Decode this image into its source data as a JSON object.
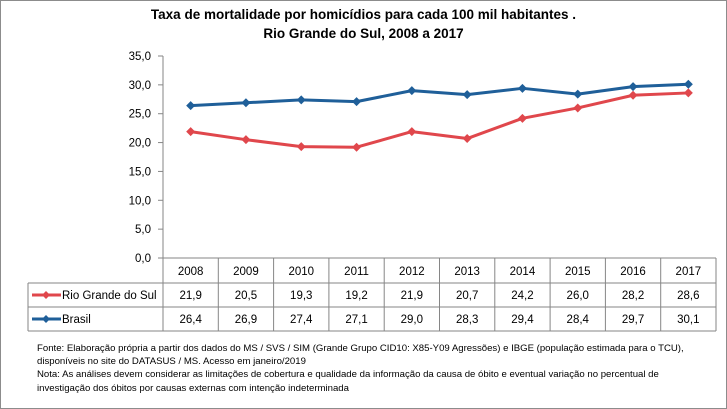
{
  "chart_data": {
    "type": "line",
    "title": "Taxa de mortalidade por homicídios para cada 100 mil habitantes .",
    "subtitle": "Rio Grande do Sul, 2008 a 2017",
    "categories": [
      "2008",
      "2009",
      "2010",
      "2011",
      "2012",
      "2013",
      "2014",
      "2015",
      "2016",
      "2017"
    ],
    "series": [
      {
        "name": "Rio Grande do Sul",
        "color": "#E0474C",
        "values": [
          21.9,
          20.5,
          19.3,
          19.2,
          21.9,
          20.7,
          24.2,
          26.0,
          28.2,
          28.6
        ],
        "labels": [
          "21,9",
          "20,5",
          "19,3",
          "19,2",
          "21,9",
          "20,7",
          "24,2",
          "26,0",
          "28,2",
          "28,6"
        ]
      },
      {
        "name": "Brasil",
        "color": "#1F5F99",
        "values": [
          26.4,
          26.9,
          27.4,
          27.1,
          29.0,
          28.3,
          29.4,
          28.4,
          29.7,
          30.1
        ],
        "labels": [
          "26,4",
          "26,9",
          "27,4",
          "27,1",
          "29,0",
          "28,3",
          "29,4",
          "28,4",
          "29,7",
          "30,1"
        ]
      }
    ],
    "ylim": [
      0,
      35
    ],
    "yticks": [
      "0,0",
      "5,0",
      "10,0",
      "15,0",
      "20,0",
      "25,0",
      "30,0",
      "35,0"
    ],
    "grid": false,
    "legend": "data-table",
    "marker": "diamond"
  },
  "notes": [
    "Fonte: Elaboração própria a partir dos dados do MS / SVS / SIM (Grande Grupo CID10: X85-Y09 Agressões) e IBGE (população estimada para o TCU),",
    "disponíveis no site do DATASUS / MS. Acesso em janeiro/2019",
    "Nota:  As análises devem considerar as limitações de cobertura e qualidade da informação da causa de óbito e eventual variação no percentual de",
    "investigação dos óbitos por causas externas com intenção  indeterminada"
  ]
}
